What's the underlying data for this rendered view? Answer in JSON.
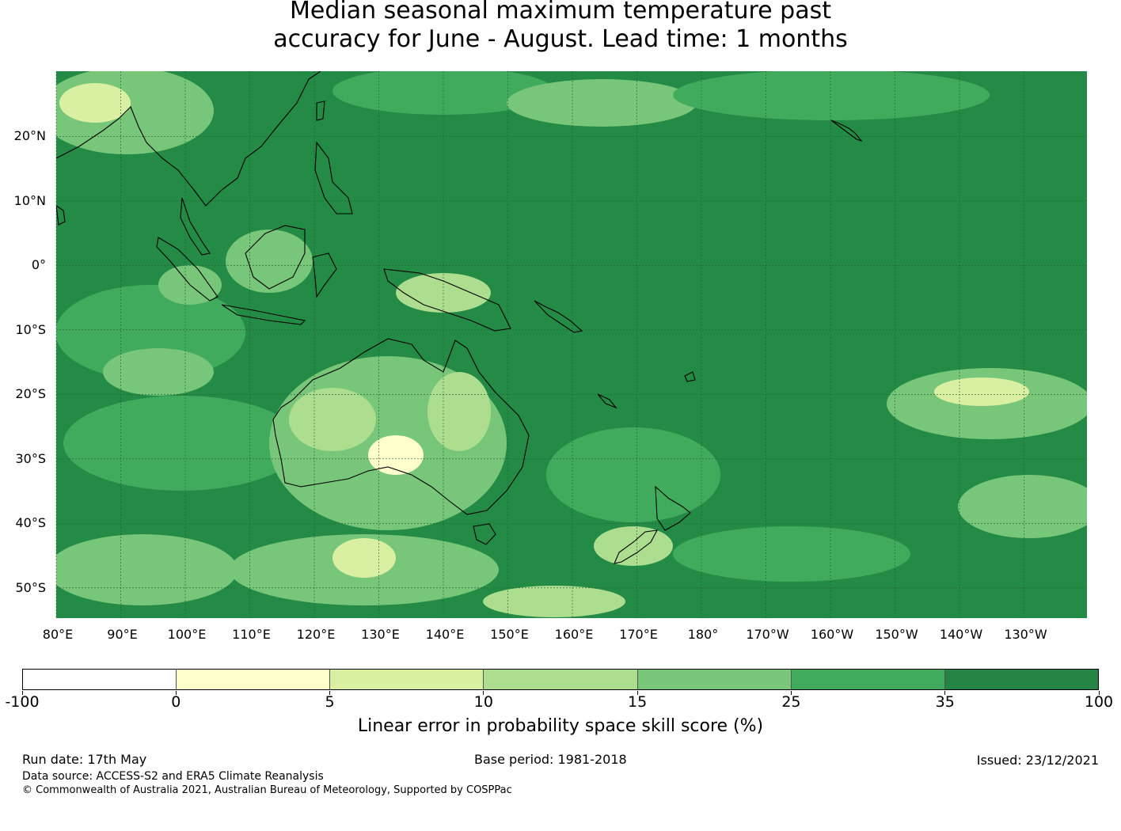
{
  "title_line1": "Median seasonal maximum temperature past",
  "title_line2": "accuracy for June - August. Lead time: 1 months",
  "map": {
    "lon_labels": [
      "80°E",
      "90°E",
      "100°E",
      "110°E",
      "120°E",
      "130°E",
      "140°E",
      "150°E",
      "160°E",
      "170°E",
      "180°",
      "170°W",
      "160°W",
      "150°W",
      "140°W",
      "130°W"
    ],
    "lat_labels": [
      "20°N",
      "10°N",
      "0°",
      "10°S",
      "20°S",
      "30°S",
      "40°S",
      "50°S"
    ],
    "background_color": "#238b45"
  },
  "colorbar": {
    "title": "Linear error in probability space skill score (%)",
    "tick_labels": [
      "-100",
      "0",
      "5",
      "10",
      "15",
      "25",
      "35",
      "100"
    ],
    "colors": [
      "#ffffff",
      "#ffffcc",
      "#d9f0a3",
      "#addd8e",
      "#78c679",
      "#41ab5d",
      "#238443"
    ]
  },
  "footer": {
    "run_date": "Run date: 17th May",
    "base_period": "Base period: 1981-2018",
    "issued": "Issued: 23/12/2021",
    "data_source": "Data source: ACCESS-S2 and ERA5 Climate Reanalysis",
    "copyright": "© Commonwealth of Australia 2021, Australian Bureau of Meteorology, Supported by COSPPac"
  }
}
